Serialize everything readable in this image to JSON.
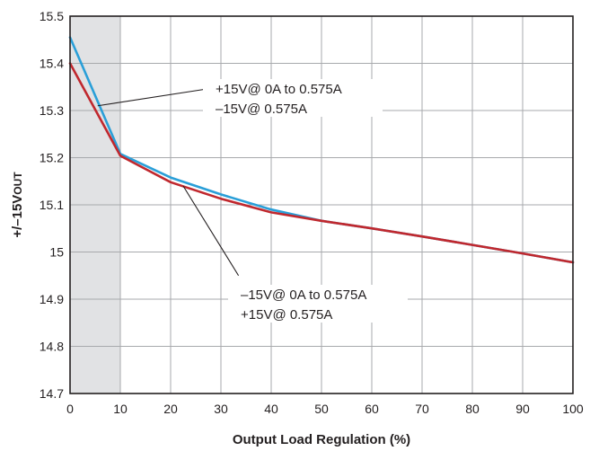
{
  "chart_data": {
    "type": "line",
    "xlabel": "Output Load Regulation (%)",
    "ylabel_main": "+/–15V",
    "ylabel_sub": "OUT",
    "xlim": [
      0,
      100
    ],
    "ylim": [
      14.7,
      15.5
    ],
    "x_ticks": [
      "0",
      "10",
      "20",
      "30",
      "40",
      "50",
      "60",
      "70",
      "80",
      "90",
      "100"
    ],
    "y_ticks": [
      "14.7",
      "14.8",
      "14.9",
      "15",
      "15.1",
      "15.2",
      "15.3",
      "15.4",
      "15.5"
    ],
    "grid": true,
    "shaded_region": {
      "x0": 0,
      "x1": 10,
      "color": "#e1e2e4"
    },
    "series": [
      {
        "color": "#2a9fd8",
        "x": [
          0,
          10,
          20,
          30,
          40,
          50,
          60,
          70,
          80,
          90,
          100
        ],
        "y": [
          15.455,
          15.208,
          15.158,
          15.122,
          15.09,
          15.066,
          15.05,
          15.033,
          15.015,
          14.997,
          14.978
        ]
      },
      {
        "color": "#c0282e",
        "x": [
          0,
          10,
          20,
          30,
          40,
          50,
          60,
          70,
          80,
          90,
          100
        ],
        "y": [
          15.4,
          15.204,
          15.148,
          15.113,
          15.084,
          15.066,
          15.05,
          15.033,
          15.015,
          14.997,
          14.978
        ]
      }
    ],
    "annotations": [
      {
        "lines": [
          "+15V@ 0A to 0.575A",
          "–15V@ 0.575A"
        ],
        "pointer_to": [
          5.5,
          15.31
        ],
        "pointer_from": [
          26.8,
          15.345
        ]
      },
      {
        "lines": [
          "–15V@ 0A to 0.575A",
          "+15V@ 0.575A"
        ],
        "pointer_to": [
          22.5,
          15.14
        ],
        "pointer_from": [
          33.5,
          14.95
        ]
      }
    ]
  }
}
